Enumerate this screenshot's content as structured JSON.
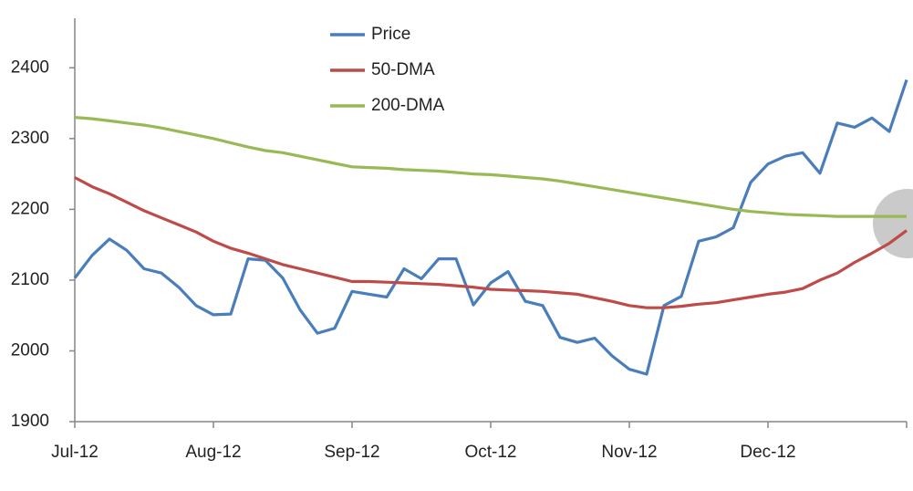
{
  "chart_data": {
    "type": "line",
    "categories": [
      "Jul-12",
      null,
      null,
      null,
      null,
      null,
      null,
      null,
      "Aug-12",
      null,
      null,
      null,
      null,
      null,
      null,
      null,
      "Sep-12",
      null,
      null,
      null,
      null,
      null,
      null,
      null,
      "Oct-12",
      null,
      null,
      null,
      null,
      null,
      null,
      null,
      "Nov-12",
      null,
      null,
      null,
      null,
      null,
      null,
      null,
      "Dec-12",
      null,
      null,
      null,
      null,
      null,
      null,
      null,
      null
    ],
    "series": [
      {
        "name": "Price",
        "color": "#4a7ebb",
        "values": [
          2103,
          2135,
          2158,
          2142,
          2116,
          2110,
          2090,
          2064,
          2051,
          2052,
          2130,
          2128,
          2103,
          2058,
          2025,
          2032,
          2084,
          2080,
          2076,
          2116,
          2102,
          2130,
          2130,
          2065,
          2096,
          2112,
          2070,
          2064,
          2019,
          2012,
          2018,
          1993,
          1974,
          1967,
          2064,
          2077,
          2155,
          2161,
          2174,
          2238,
          2264,
          2275,
          2280,
          2251,
          2322,
          2316,
          2329,
          2310,
          2383
        ]
      },
      {
        "name": "50-DMA",
        "color": "#be4b48",
        "values": [
          2245,
          2232,
          2222,
          2210,
          2198,
          2188,
          2178,
          2168,
          2155,
          2145,
          2138,
          2130,
          2122,
          2116,
          2110,
          2104,
          2098,
          2098,
          2097,
          2096,
          2095,
          2094,
          2092,
          2090,
          2087,
          2086,
          2085,
          2084,
          2082,
          2080,
          2075,
          2070,
          2064,
          2061,
          2061,
          2063,
          2066,
          2068,
          2072,
          2076,
          2080,
          2083,
          2088,
          2100,
          2110,
          2125,
          2138,
          2152,
          2170
        ]
      },
      {
        "name": "200-DMA",
        "color": "#98b954",
        "values": [
          2330,
          2328,
          2325,
          2322,
          2319,
          2315,
          2310,
          2305,
          2300,
          2294,
          2288,
          2283,
          2280,
          2275,
          2270,
          2265,
          2260,
          2259,
          2258,
          2256,
          2255,
          2254,
          2252,
          2250,
          2249,
          2247,
          2245,
          2243,
          2240,
          2236,
          2232,
          2228,
          2224,
          2220,
          2216,
          2212,
          2208,
          2204,
          2200,
          2197,
          2195,
          2193,
          2192,
          2191,
          2190,
          2190,
          2190,
          2190,
          2190
        ]
      }
    ],
    "ylim": [
      1900,
      2470
    ],
    "yticks": [
      1900,
      2000,
      2100,
      2200,
      2300,
      2400
    ],
    "grid": false,
    "legend": "top"
  }
}
